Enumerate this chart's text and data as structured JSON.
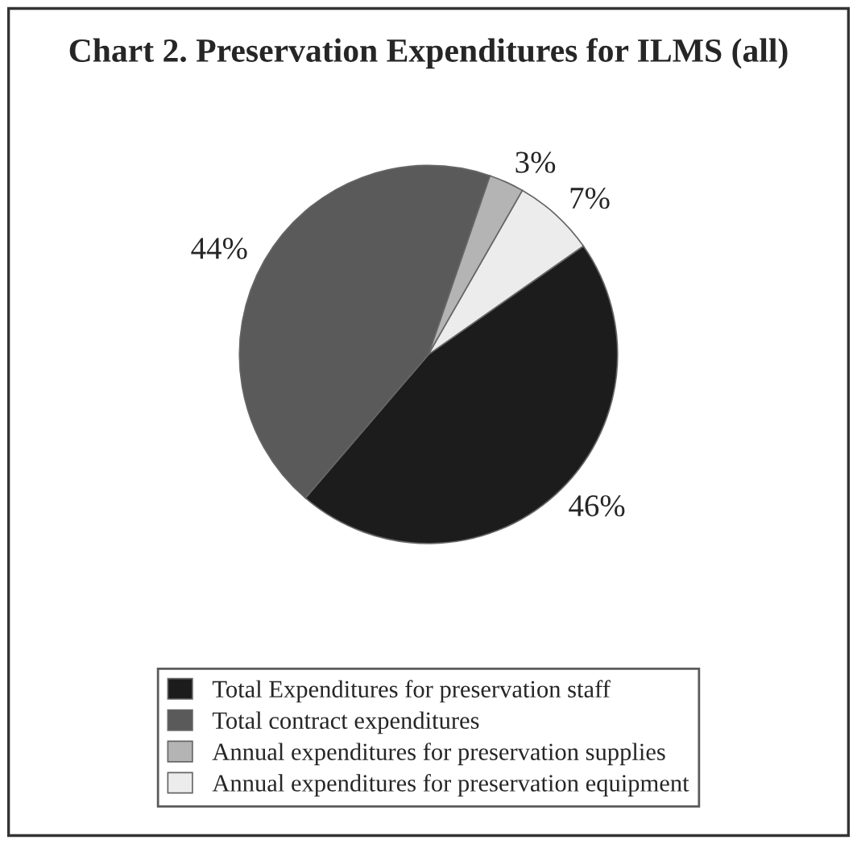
{
  "chart_data": {
    "type": "pie",
    "title": "Chart 2. Preservation Expenditures for ILMS (all)",
    "categories": [
      "Total Expenditures for preservation staff",
      "Total contract expenditures",
      "Annual expenditures for preservation supplies",
      "Annual expenditures for preservation equipment"
    ],
    "values": [
      46,
      44,
      3,
      7
    ],
    "colors": [
      "#1c1c1c",
      "#5a5a5a",
      "#b4b4b4",
      "#ececec"
    ],
    "value_labels": [
      "46%",
      "44%",
      "3%",
      "7%"
    ],
    "legend": "bottom"
  }
}
